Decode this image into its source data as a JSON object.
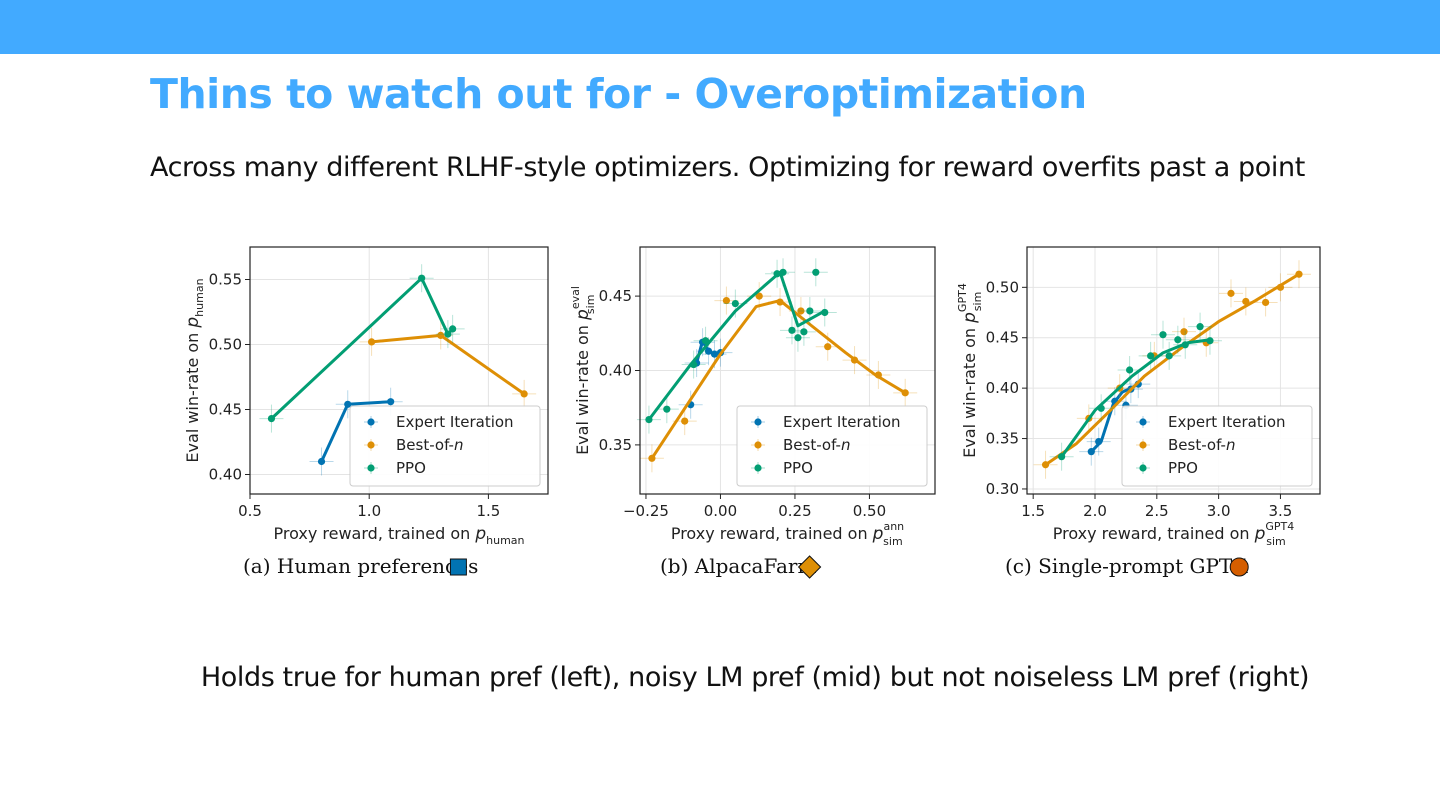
{
  "slide": {
    "title": "Thins to watch out for - Overoptimization",
    "subtitle": "Across many different RLHF-style optimizers. Optimizing for reward overfits past a point",
    "footer": "Holds true for human pref (left), noisy LM pref (mid) but not noiseless LM pref (right)"
  },
  "colors": {
    "banner": "#42aaff",
    "expert": "#0173b2",
    "bestofn": "#de8f05",
    "ppo": "#029e73",
    "gpt4_marker": "#d55e00"
  },
  "chart_data": [
    {
      "type": "line",
      "caption": "(a) Human preferences",
      "marker": "square",
      "xlabel": "Proxy reward, trained on ",
      "xlabel_math": "p",
      "xlabel_sub": "human",
      "xlabel_sup": "",
      "ylabel": "Eval win-rate on ",
      "ylabel_math": "p",
      "ylabel_sub": "human",
      "ylabel_sup": "",
      "xlim": [
        0.5,
        1.75
      ],
      "ylim": [
        0.385,
        0.575
      ],
      "xticks": [
        0.5,
        1.0,
        1.5
      ],
      "xtick_labels": [
        "0.5",
        "1.0",
        "1.5"
      ],
      "yticks": [
        0.4,
        0.45,
        0.5,
        0.55
      ],
      "ytick_labels": [
        "0.40",
        "0.45",
        "0.50",
        "0.55"
      ],
      "grid": true,
      "legend": "lower-right",
      "series": [
        {
          "name": "Expert Iteration",
          "name_italic": "",
          "color": "#0173b2",
          "line": {
            "x": [
              0.8,
              0.91,
              1.09
            ],
            "y": [
              0.41,
              0.454,
              0.456
            ]
          },
          "points": {
            "x": [
              0.8,
              0.91,
              1.09
            ],
            "y": [
              0.41,
              0.454,
              0.456
            ]
          }
        },
        {
          "name": "Best-of-",
          "name_italic": "n",
          "color": "#de8f05",
          "line": {
            "x": [
              1.01,
              1.3,
              1.65
            ],
            "y": [
              0.502,
              0.507,
              0.462
            ]
          },
          "points": {
            "x": [
              1.01,
              1.3,
              1.65
            ],
            "y": [
              0.502,
              0.507,
              0.462
            ]
          }
        },
        {
          "name": "PPO",
          "name_italic": "",
          "color": "#029e73",
          "line": {
            "x": [
              0.59,
              1.22,
              1.33,
              1.35
            ],
            "y": [
              0.443,
              0.551,
              0.508,
              0.512
            ]
          },
          "points": {
            "x": [
              0.59,
              1.22,
              1.33,
              1.35
            ],
            "y": [
              0.443,
              0.551,
              0.508,
              0.512
            ]
          }
        }
      ]
    },
    {
      "type": "line",
      "caption": "(b) AlpacaFarm",
      "marker": "diamond",
      "xlabel": "Proxy reward, trained on ",
      "xlabel_math": "p",
      "xlabel_sub": "sim",
      "xlabel_sup": "ann",
      "ylabel": "Eval win-rate on ",
      "ylabel_math": "p",
      "ylabel_sub": "sim",
      "ylabel_sup": "eval",
      "xlim": [
        -0.27,
        0.72
      ],
      "ylim": [
        0.317,
        0.483
      ],
      "xticks": [
        -0.25,
        0.0,
        0.25,
        0.5
      ],
      "xtick_labels": [
        "−0.25",
        "0.00",
        "0.25",
        "0.50"
      ],
      "yticks": [
        0.35,
        0.4,
        0.45
      ],
      "ytick_labels": [
        "0.35",
        "0.40",
        "0.45"
      ],
      "grid": true,
      "legend": "lower-right",
      "series": [
        {
          "name": "Expert Iteration",
          "name_italic": "",
          "color": "#0173b2",
          "line": {
            "x": [
              -0.08,
              -0.06,
              -0.04,
              -0.02,
              0.0
            ],
            "y": [
              0.405,
              0.42,
              0.413,
              0.411,
              0.412
            ]
          },
          "points": {
            "x": [
              -0.1,
              -0.08,
              -0.06,
              -0.04,
              -0.02,
              0.0
            ],
            "y": [
              0.377,
              0.405,
              0.419,
              0.413,
              0.411,
              0.412
            ]
          }
        },
        {
          "name": "Best-of-",
          "name_italic": "n",
          "color": "#de8f05",
          "line": {
            "x": [
              -0.23,
              0.0,
              0.12,
              0.2,
              0.3,
              0.42,
              0.52,
              0.62
            ],
            "y": [
              0.341,
              0.411,
              0.443,
              0.447,
              0.431,
              0.412,
              0.397,
              0.385
            ]
          },
          "points": {
            "x": [
              -0.23,
              -0.12,
              0.02,
              0.13,
              0.2,
              0.27,
              0.36,
              0.45,
              0.53,
              0.62
            ],
            "y": [
              0.341,
              0.366,
              0.447,
              0.45,
              0.446,
              0.44,
              0.416,
              0.407,
              0.397,
              0.385
            ]
          }
        },
        {
          "name": "PPO",
          "name_italic": "",
          "color": "#029e73",
          "line": {
            "x": [
              -0.24,
              -0.1,
              0.05,
              0.2,
              0.26,
              0.35
            ],
            "y": [
              0.367,
              0.404,
              0.44,
              0.466,
              0.43,
              0.44
            ]
          },
          "points": {
            "x": [
              -0.24,
              -0.18,
              -0.09,
              -0.05,
              0.05,
              0.19,
              0.21,
              0.24,
              0.26,
              0.28,
              0.3,
              0.32,
              0.35
            ],
            "y": [
              0.367,
              0.374,
              0.404,
              0.42,
              0.445,
              0.465,
              0.466,
              0.427,
              0.422,
              0.426,
              0.44,
              0.466,
              0.439
            ]
          }
        }
      ]
    },
    {
      "type": "line",
      "caption": "(c) Single-prompt GPT-4",
      "marker": "circle",
      "xlabel": "Proxy reward, trained on ",
      "xlabel_math": "p",
      "xlabel_sub": "sim",
      "xlabel_sup": "GPT4",
      "ylabel": "Eval win-rate on ",
      "ylabel_math": "p",
      "ylabel_sub": "sim",
      "ylabel_sup": "GPT4",
      "xlim": [
        1.45,
        3.82
      ],
      "ylim": [
        0.295,
        0.54
      ],
      "xticks": [
        1.5,
        2.0,
        2.5,
        3.0,
        3.5
      ],
      "xtick_labels": [
        "1.5",
        "2.0",
        "2.5",
        "3.0",
        "3.5"
      ],
      "yticks": [
        0.3,
        0.35,
        0.4,
        0.45,
        0.5
      ],
      "ytick_labels": [
        "0.30",
        "0.35",
        "0.40",
        "0.45",
        "0.50"
      ],
      "grid": true,
      "legend": "lower-right",
      "series": [
        {
          "name": "Expert Iteration",
          "name_italic": "",
          "color": "#0173b2",
          "line": {
            "x": [
              1.97,
              2.05,
              2.15,
              2.22,
              2.29,
              2.35
            ],
            "y": [
              0.337,
              0.347,
              0.385,
              0.396,
              0.4,
              0.404
            ]
          },
          "points": {
            "x": [
              1.97,
              2.03,
              2.16,
              2.25,
              2.29,
              2.35
            ],
            "y": [
              0.337,
              0.347,
              0.387,
              0.383,
              0.399,
              0.404
            ]
          }
        },
        {
          "name": "Best-of-",
          "name_italic": "n",
          "color": "#de8f05",
          "line": {
            "x": [
              1.6,
              1.85,
              2.1,
              2.4,
              2.7,
              3.0,
              3.3,
              3.65
            ],
            "y": [
              0.324,
              0.345,
              0.375,
              0.412,
              0.44,
              0.466,
              0.487,
              0.513
            ]
          },
          "points": {
            "x": [
              1.6,
              1.95,
              2.2,
              2.48,
              2.72,
              2.9,
              3.1,
              3.22,
              3.38,
              3.5,
              3.65
            ],
            "y": [
              0.324,
              0.37,
              0.4,
              0.432,
              0.456,
              0.445,
              0.494,
              0.486,
              0.485,
              0.5,
              0.513
            ]
          }
        },
        {
          "name": "PPO",
          "name_italic": "",
          "color": "#029e73",
          "line": {
            "x": [
              1.73,
              2.0,
              2.3,
              2.55,
              2.75,
              2.93
            ],
            "y": [
              0.332,
              0.378,
              0.412,
              0.435,
              0.445,
              0.448
            ]
          },
          "points": {
            "x": [
              1.73,
              2.05,
              2.28,
              2.45,
              2.55,
              2.6,
              2.67,
              2.73,
              2.85,
              2.93
            ],
            "y": [
              0.332,
              0.38,
              0.418,
              0.432,
              0.453,
              0.432,
              0.448,
              0.443,
              0.461,
              0.447
            ]
          }
        }
      ]
    }
  ]
}
